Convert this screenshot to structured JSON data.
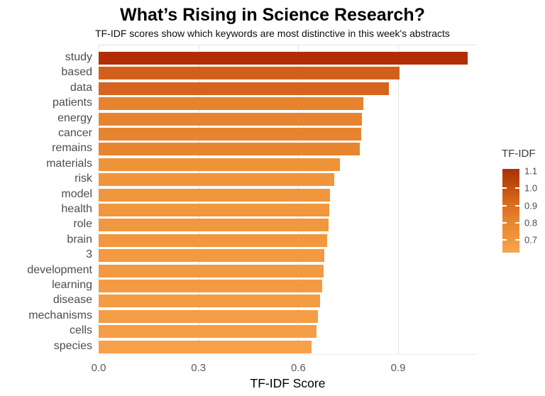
{
  "chart_data": {
    "type": "bar",
    "orientation": "horizontal",
    "title": "What’s Rising in Science Research?",
    "subtitle": "TF-IDF scores show which keywords are most distinctive in this week's abstracts",
    "xlabel": "TF-IDF Score",
    "ylabel": "",
    "xlim": [
      0,
      1.136
    ],
    "xticks": [
      0,
      0.3,
      0.6,
      0.9
    ],
    "xtick_labels": [
      "0.0",
      "0.3",
      "0.6",
      "0.9"
    ],
    "grid": true,
    "categories": [
      "study",
      "based",
      "data",
      "patients",
      "energy",
      "cancer",
      "remains",
      "materials",
      "risk",
      "model",
      "health",
      "role",
      "brain",
      "3",
      "development",
      "learning",
      "disease",
      "mechanisms",
      "cells",
      "species"
    ],
    "values": [
      1.109,
      0.905,
      0.871,
      0.796,
      0.792,
      0.788,
      0.784,
      0.724,
      0.707,
      0.696,
      0.692,
      0.69,
      0.687,
      0.678,
      0.676,
      0.671,
      0.666,
      0.658,
      0.655,
      0.64
    ],
    "bar_colors": [
      "#b12d05",
      "#d2601c",
      "#d5641e",
      "#e5832e",
      "#e6842f",
      "#e68430",
      "#e78531",
      "#ef9339",
      "#f0953b",
      "#f0963c",
      "#f1973d",
      "#f1983e",
      "#f1983f",
      "#f29941",
      "#f29a42",
      "#f39b43",
      "#f39c44",
      "#f49d45",
      "#f59e47",
      "#f7a04a"
    ],
    "legend": {
      "title": "TF-IDF",
      "position": "right",
      "type": "colorbar",
      "ticks": [
        "1.1",
        "1.0",
        "0.9",
        "0.8",
        "0.7"
      ],
      "range": [
        0.625,
        1.113
      ],
      "gradient": [
        "#a93103",
        "#c14d0d",
        "#d76a1d",
        "#e5832e",
        "#ef9339",
        "#f8a64e"
      ]
    }
  }
}
